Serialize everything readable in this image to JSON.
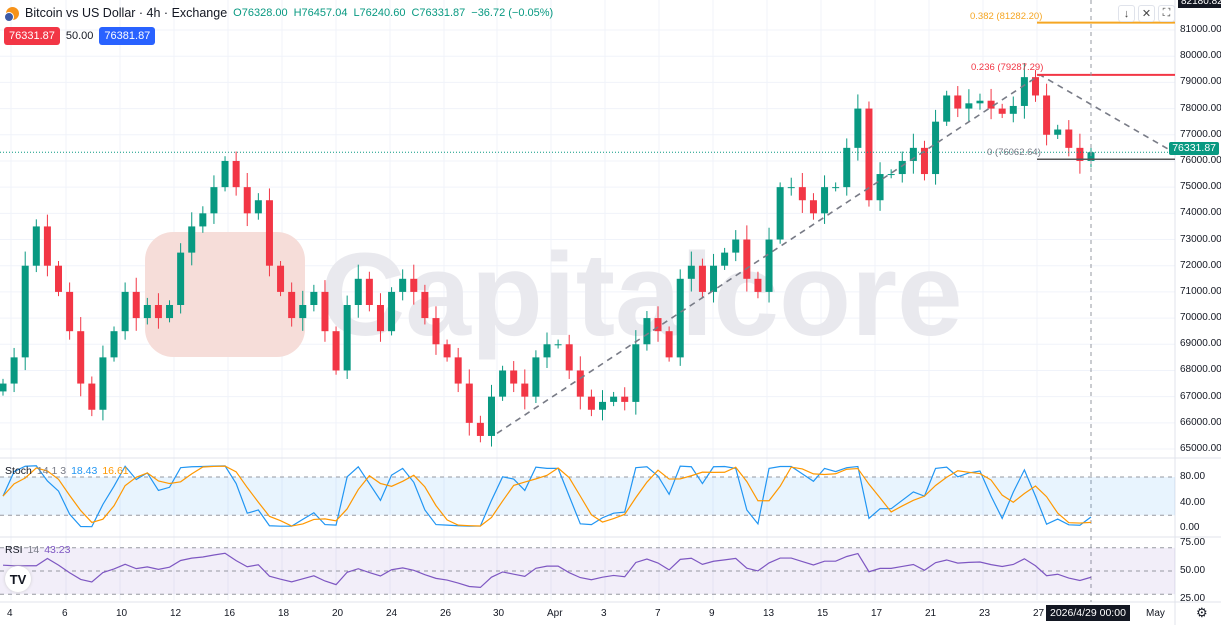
{
  "header": {
    "title": "Bitcoin vs US Dollar · 4h · Exchange",
    "open": "O76328.00",
    "high": "H76457.04",
    "low": "L76240.60",
    "close": "C76331.87",
    "change": "−36.72 (−0.05%)"
  },
  "quotes": {
    "sell": "76331.87",
    "spread": "50.00",
    "buy": "76381.87"
  },
  "watermark": "Capitalcore",
  "price_axis": {
    "top_label": "82180.82",
    "ticks": [
      "81000.00",
      "80000.00",
      "79000.00",
      "78000.00",
      "77000.00",
      "76000.00",
      "75000.00",
      "74000.00",
      "73000.00",
      "72000.00",
      "71000.00",
      "70000.00",
      "69000.00",
      "68000.00",
      "67000.00",
      "66000.00",
      "65000.00"
    ],
    "last_price": "76331.87"
  },
  "fib": {
    "l382": "0.382 (81282.20)",
    "v382": 81282.2,
    "l236": "0.236 (79287.29)",
    "v236": 79287.29,
    "l0": "0 (76062.64)",
    "v0": 76062.64
  },
  "stoch": {
    "label": "Stoch",
    "params": "14 1 3",
    "k": "18.43",
    "d": "16.61",
    "ticks": [
      "80.00",
      "40.00",
      "0.00"
    ]
  },
  "rsi": {
    "label": "RSI",
    "params": "14",
    "value": "43.23",
    "ticks": [
      "75.00",
      "50.00",
      "25.00"
    ]
  },
  "time_axis": {
    "labels": [
      "4",
      "6",
      "10",
      "12",
      "16",
      "18",
      "20",
      "24",
      "26",
      "30",
      "Apr",
      "3",
      "7",
      "9",
      "13",
      "15",
      "17",
      "21",
      "23",
      "27",
      "May"
    ],
    "crosshair": "2026/4/29  00:00"
  },
  "toolbar": {
    "scroll_icon": "arrow-down-icon",
    "collapse_icon": "collapse-icon",
    "fullscreen_icon": "fullscreen-icon"
  },
  "colors": {
    "up": "#089981",
    "down": "#f23645",
    "stoch_k": "#2196f3",
    "stoch_d": "#ff9800",
    "rsi": "#7e57c2",
    "fib382": "#f5a623",
    "fib236": "#f23645"
  },
  "chart_data": {
    "type": "candlestick",
    "closes": [
      67500,
      68500,
      72000,
      73500,
      72000,
      71000,
      69500,
      67500,
      66500,
      68500,
      69500,
      71000,
      70000,
      70500,
      70000,
      70500,
      72500,
      73500,
      74000,
      75000,
      76000,
      75000,
      74000,
      74500,
      72000,
      71000,
      70000,
      70500,
      71000,
      69500,
      68000,
      70500,
      71500,
      70500,
      69500,
      71000,
      71500,
      71000,
      70000,
      69000,
      68500,
      67500,
      66000,
      65500,
      67000,
      68000,
      67500,
      67000,
      68500,
      69000,
      69000,
      68000,
      67000,
      66500,
      66800,
      67000,
      66800,
      69000,
      70000,
      69500,
      68500,
      71500,
      72000,
      71000,
      72000,
      72500,
      73000,
      71500,
      71000,
      73000,
      75000,
      75000,
      74500,
      74000,
      75000,
      75000,
      76500,
      78000,
      74500,
      75500,
      75500,
      76000,
      76500,
      75500,
      77500,
      78500,
      78000,
      78200,
      78300,
      78000,
      77800,
      78100,
      79200,
      78500,
      77000,
      77200,
      76500,
      76000,
      76331.87
    ],
    "ylim": [
      64700,
      82200
    ]
  }
}
